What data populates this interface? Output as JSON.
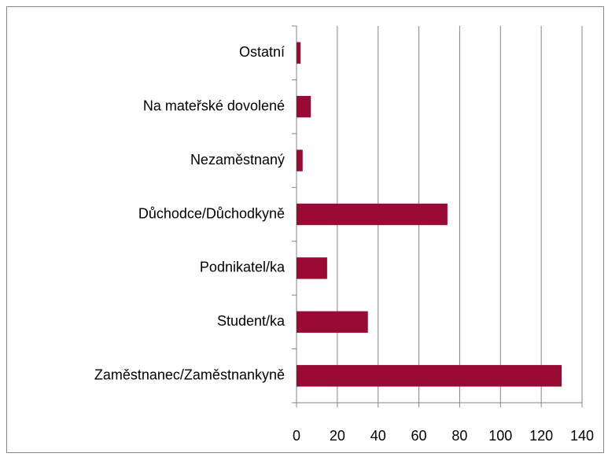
{
  "chart_data": {
    "type": "barh",
    "categories": [
      "Zaměstnanec/Zaměstnankyně",
      "Student/ka",
      "Podnikatel/ka",
      "Důchodce/Důchodkyně",
      "Nezaměstnaný",
      "Na mateřské dovolené",
      "Ostatní"
    ],
    "values": [
      130,
      35,
      15,
      74,
      3,
      7,
      2
    ],
    "color": "#990a35",
    "xlim": [
      0,
      140
    ],
    "xticks": [
      0,
      20,
      40,
      60,
      80,
      100,
      120,
      140
    ],
    "grid": true
  }
}
